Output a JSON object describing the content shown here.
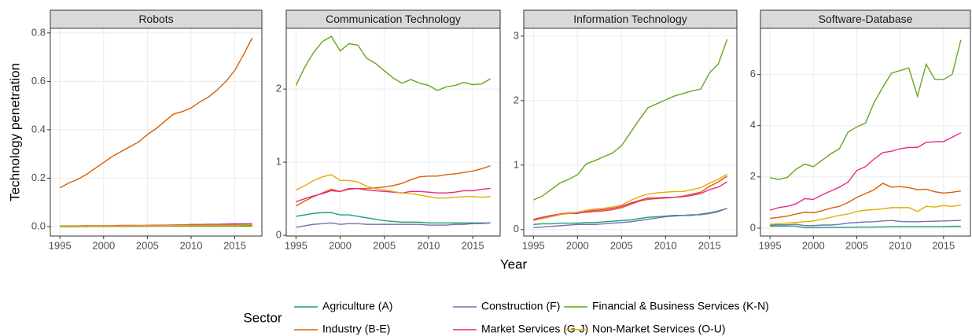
{
  "x_label": "Year",
  "y_label": "Technology penetration",
  "legend_title": "Sector",
  "chart_data": [
    {
      "type": "line",
      "title": "Robots",
      "x": [
        1995,
        1996,
        1997,
        1998,
        1999,
        2000,
        2001,
        2002,
        2003,
        2004,
        2005,
        2006,
        2007,
        2008,
        2009,
        2010,
        2011,
        2012,
        2013,
        2014,
        2015,
        2016,
        2017
      ],
      "xlim": [
        1993.9,
        2018.1
      ],
      "xticks": [
        1995,
        2000,
        2005,
        2010,
        2015
      ],
      "ylim": [
        -0.039,
        0.819
      ],
      "yticks": [
        {
          "value": 0,
          "label": "0.0"
        },
        {
          "value": 0.2,
          "label": "0.2"
        },
        {
          "value": 0.4,
          "label": "0.4"
        },
        {
          "value": 0.6,
          "label": "0.6"
        },
        {
          "value": 0.8,
          "label": "0.8"
        }
      ],
      "series": [
        {
          "name": "Agriculture (A)",
          "color": "#1b9e77",
          "values": [
            0,
            0,
            0,
            0,
            0.001,
            0.001,
            0.001,
            0.001,
            0.002,
            0.002,
            0.002,
            0.002,
            0.003,
            0.003,
            0.003,
            0.003,
            0.004,
            0.004,
            0.004,
            0.004,
            0.005,
            0.005,
            0.005
          ]
        },
        {
          "name": "Construction (F)",
          "color": "#7570b3",
          "values": [
            0.002,
            0.002,
            0.002,
            0.003,
            0.003,
            0.003,
            0.003,
            0.004,
            0.004,
            0.004,
            0.005,
            0.005,
            0.006,
            0.007,
            0.007,
            0.009,
            0.009,
            0.01,
            0.01,
            0.011,
            0.012,
            0.012,
            0.012
          ]
        },
        {
          "name": "Financial & Business Services (K-N)",
          "color": "#66a61e",
          "values": [
            0.001,
            0.001,
            0.001,
            0.001,
            0.001,
            0.001,
            0.001,
            0.001,
            0.001,
            0.001,
            0.002,
            0.002,
            0.002,
            0.002,
            0.002,
            0.002,
            0.002,
            0.002,
            0.002,
            0.002,
            0.002,
            0.002,
            0.002
          ]
        },
        {
          "name": "Industry (B-E)",
          "color": "#d95f02",
          "values": [
            0.16,
            0.18,
            0.195,
            0.215,
            0.24,
            0.265,
            0.29,
            0.31,
            0.33,
            0.35,
            0.38,
            0.405,
            0.435,
            0.465,
            0.475,
            0.49,
            0.515,
            0.535,
            0.565,
            0.6,
            0.645,
            0.71,
            0.78
          ]
        },
        {
          "name": "Market Services (G-J)",
          "color": "#e7298a",
          "values": [
            0.003,
            0.003,
            0.003,
            0.004,
            0.004,
            0.004,
            0.004,
            0.005,
            0.005,
            0.005,
            0.005,
            0.006,
            0.006,
            0.006,
            0.007,
            0.007,
            0.007,
            0.008,
            0.008,
            0.009,
            0.009,
            0.01,
            0.01
          ]
        },
        {
          "name": "Non-Market Services (O-U)",
          "color": "#e6ab02",
          "values": [
            0.002,
            0.002,
            0.002,
            0.002,
            0.003,
            0.003,
            0.003,
            0.003,
            0.003,
            0.004,
            0.004,
            0.004,
            0.004,
            0.005,
            0.005,
            0.005,
            0.005,
            0.006,
            0.006,
            0.006,
            0.006,
            0.007,
            0.007
          ]
        }
      ]
    },
    {
      "type": "line",
      "title": "Communication Technology",
      "x": [
        1995,
        1996,
        1997,
        1998,
        1999,
        2000,
        2001,
        2002,
        2003,
        2004,
        2005,
        2006,
        2007,
        2008,
        2009,
        2010,
        2011,
        2012,
        2013,
        2014,
        2015,
        2016,
        2017
      ],
      "xlim": [
        1993.9,
        2018.1
      ],
      "xticks": [
        1995,
        2000,
        2005,
        2010,
        2015
      ],
      "ylim": [
        -0.01,
        2.83
      ],
      "yticks": [
        0,
        1,
        2
      ],
      "series": [
        {
          "name": "Agriculture (A)",
          "color": "#1b9e77",
          "values": [
            0.26,
            0.28,
            0.3,
            0.31,
            0.31,
            0.28,
            0.28,
            0.26,
            0.24,
            0.22,
            0.2,
            0.19,
            0.18,
            0.18,
            0.18,
            0.17,
            0.17,
            0.17,
            0.17,
            0.17,
            0.17,
            0.17,
            0.17
          ]
        },
        {
          "name": "Construction (F)",
          "color": "#7570b3",
          "values": [
            0.11,
            0.13,
            0.15,
            0.16,
            0.17,
            0.15,
            0.16,
            0.16,
            0.15,
            0.15,
            0.15,
            0.15,
            0.15,
            0.15,
            0.15,
            0.14,
            0.14,
            0.14,
            0.15,
            0.15,
            0.16,
            0.16,
            0.17
          ]
        },
        {
          "name": "Financial & Business Services (K-N)",
          "color": "#66a61e",
          "values": [
            2.05,
            2.3,
            2.5,
            2.65,
            2.72,
            2.52,
            2.62,
            2.6,
            2.42,
            2.35,
            2.25,
            2.15,
            2.08,
            2.13,
            2.08,
            2.05,
            1.98,
            2.03,
            2.05,
            2.09,
            2.06,
            2.07,
            2.14
          ]
        },
        {
          "name": "Industry (B-E)",
          "color": "#d95f02",
          "values": [
            0.4,
            0.47,
            0.53,
            0.58,
            0.63,
            0.6,
            0.63,
            0.64,
            0.64,
            0.65,
            0.66,
            0.68,
            0.71,
            0.76,
            0.8,
            0.81,
            0.81,
            0.83,
            0.84,
            0.86,
            0.88,
            0.91,
            0.95
          ]
        },
        {
          "name": "Market Services (G-J)",
          "color": "#e7298a",
          "values": [
            0.46,
            0.5,
            0.54,
            0.57,
            0.61,
            0.6,
            0.64,
            0.64,
            0.62,
            0.61,
            0.6,
            0.59,
            0.58,
            0.6,
            0.6,
            0.59,
            0.58,
            0.58,
            0.59,
            0.61,
            0.61,
            0.63,
            0.64
          ]
        },
        {
          "name": "Non-Market Services (O-U)",
          "color": "#e6ab02",
          "values": [
            0.62,
            0.68,
            0.75,
            0.8,
            0.83,
            0.75,
            0.75,
            0.73,
            0.67,
            0.64,
            0.62,
            0.6,
            0.58,
            0.57,
            0.55,
            0.53,
            0.51,
            0.51,
            0.52,
            0.53,
            0.53,
            0.52,
            0.53
          ]
        }
      ]
    },
    {
      "type": "line",
      "title": "Information Technology",
      "x": [
        1995,
        1996,
        1997,
        1998,
        1999,
        2000,
        2001,
        2002,
        2003,
        2004,
        2005,
        2006,
        2007,
        2008,
        2009,
        2010,
        2011,
        2012,
        2013,
        2014,
        2015,
        2016,
        2017
      ],
      "xlim": [
        1993.9,
        2018.1
      ],
      "xticks": [
        1995,
        2000,
        2005,
        2010,
        2015
      ],
      "ylim": [
        -0.1,
        3.12
      ],
      "yticks": [
        0,
        1,
        2,
        3
      ],
      "series": [
        {
          "name": "Agriculture (A)",
          "color": "#1b9e77",
          "values": [
            0.08,
            0.09,
            0.09,
            0.1,
            0.1,
            0.1,
            0.11,
            0.11,
            0.12,
            0.13,
            0.14,
            0.15,
            0.17,
            0.19,
            0.2,
            0.21,
            0.22,
            0.22,
            0.23,
            0.23,
            0.25,
            0.28,
            0.33
          ]
        },
        {
          "name": "Construction (F)",
          "color": "#7570b3",
          "values": [
            0.03,
            0.04,
            0.05,
            0.06,
            0.07,
            0.08,
            0.08,
            0.08,
            0.09,
            0.1,
            0.11,
            0.12,
            0.14,
            0.16,
            0.18,
            0.2,
            0.21,
            0.22,
            0.22,
            0.24,
            0.26,
            0.29,
            0.33
          ]
        },
        {
          "name": "Financial & Business Services (K-N)",
          "color": "#66a61e",
          "values": [
            0.46,
            0.52,
            0.62,
            0.72,
            0.78,
            0.85,
            1.02,
            1.07,
            1.13,
            1.19,
            1.3,
            1.5,
            1.7,
            1.89,
            1.95,
            2.01,
            2.07,
            2.11,
            2.15,
            2.18,
            2.43,
            2.57,
            2.95
          ]
        },
        {
          "name": "Industry (B-E)",
          "color": "#d95f02",
          "values": [
            0.15,
            0.18,
            0.21,
            0.24,
            0.26,
            0.26,
            0.27,
            0.28,
            0.29,
            0.31,
            0.34,
            0.39,
            0.44,
            0.47,
            0.48,
            0.49,
            0.5,
            0.52,
            0.55,
            0.58,
            0.67,
            0.74,
            0.83
          ]
        },
        {
          "name": "Market Services (G-J)",
          "color": "#e7298a",
          "values": [
            0.16,
            0.19,
            0.22,
            0.24,
            0.25,
            0.25,
            0.28,
            0.3,
            0.31,
            0.33,
            0.36,
            0.41,
            0.45,
            0.49,
            0.49,
            0.5,
            0.5,
            0.51,
            0.53,
            0.56,
            0.62,
            0.66,
            0.74
          ]
        },
        {
          "name": "Non-Market Services (O-U)",
          "color": "#e6ab02",
          "values": [
            0.14,
            0.17,
            0.2,
            0.23,
            0.25,
            0.27,
            0.3,
            0.32,
            0.33,
            0.35,
            0.38,
            0.45,
            0.51,
            0.55,
            0.57,
            0.58,
            0.59,
            0.59,
            0.62,
            0.65,
            0.72,
            0.78,
            0.86
          ]
        }
      ]
    },
    {
      "type": "line",
      "title": "Software-Database",
      "x": [
        1995,
        1996,
        1997,
        1998,
        1999,
        2000,
        2001,
        2002,
        2003,
        2004,
        2005,
        2006,
        2007,
        2008,
        2009,
        2010,
        2011,
        2012,
        2013,
        2014,
        2015,
        2016,
        2017
      ],
      "xlim": [
        1993.9,
        2018.1
      ],
      "xticks": [
        1995,
        2000,
        2005,
        2010,
        2015
      ],
      "ylim": [
        -0.31,
        7.8
      ],
      "yticks": [
        0,
        2,
        4,
        6
      ],
      "series": [
        {
          "name": "Agriculture (A)",
          "color": "#1b9e77",
          "values": [
            0.08,
            0.08,
            0.08,
            0.08,
            0.02,
            0.02,
            0.03,
            0.03,
            0.03,
            0.03,
            0.04,
            0.04,
            0.04,
            0.05,
            0.06,
            0.06,
            0.06,
            0.06,
            0.06,
            0.06,
            0.06,
            0.07,
            0.07
          ]
        },
        {
          "name": "Construction (F)",
          "color": "#7570b3",
          "values": [
            0.12,
            0.13,
            0.13,
            0.15,
            0.1,
            0.1,
            0.12,
            0.12,
            0.15,
            0.2,
            0.22,
            0.24,
            0.25,
            0.28,
            0.3,
            0.26,
            0.25,
            0.25,
            0.26,
            0.27,
            0.28,
            0.29,
            0.3
          ]
        },
        {
          "name": "Financial & Business Services (K-N)",
          "color": "#66a61e",
          "values": [
            1.97,
            1.9,
            1.98,
            2.3,
            2.5,
            2.4,
            2.65,
            2.9,
            3.1,
            3.75,
            3.95,
            4.1,
            4.9,
            5.5,
            6.05,
            6.15,
            6.25,
            5.15,
            6.4,
            5.8,
            5.8,
            6.0,
            7.35
          ]
        },
        {
          "name": "Industry (B-E)",
          "color": "#d95f02",
          "values": [
            0.38,
            0.42,
            0.47,
            0.55,
            0.62,
            0.6,
            0.68,
            0.78,
            0.85,
            1.0,
            1.2,
            1.35,
            1.5,
            1.75,
            1.6,
            1.62,
            1.58,
            1.5,
            1.52,
            1.42,
            1.37,
            1.4,
            1.45
          ]
        },
        {
          "name": "Market Services (G-J)",
          "color": "#e7298a",
          "values": [
            0.7,
            0.8,
            0.85,
            0.95,
            1.15,
            1.12,
            1.3,
            1.45,
            1.6,
            1.8,
            2.25,
            2.4,
            2.7,
            2.95,
            3.0,
            3.1,
            3.15,
            3.15,
            3.35,
            3.37,
            3.38,
            3.55,
            3.72
          ]
        },
        {
          "name": "Non-Market Services (O-U)",
          "color": "#e6ab02",
          "values": [
            0.15,
            0.18,
            0.2,
            0.22,
            0.25,
            0.28,
            0.35,
            0.42,
            0.5,
            0.55,
            0.65,
            0.7,
            0.72,
            0.75,
            0.8,
            0.8,
            0.8,
            0.65,
            0.85,
            0.82,
            0.88,
            0.85,
            0.9
          ]
        }
      ]
    }
  ]
}
